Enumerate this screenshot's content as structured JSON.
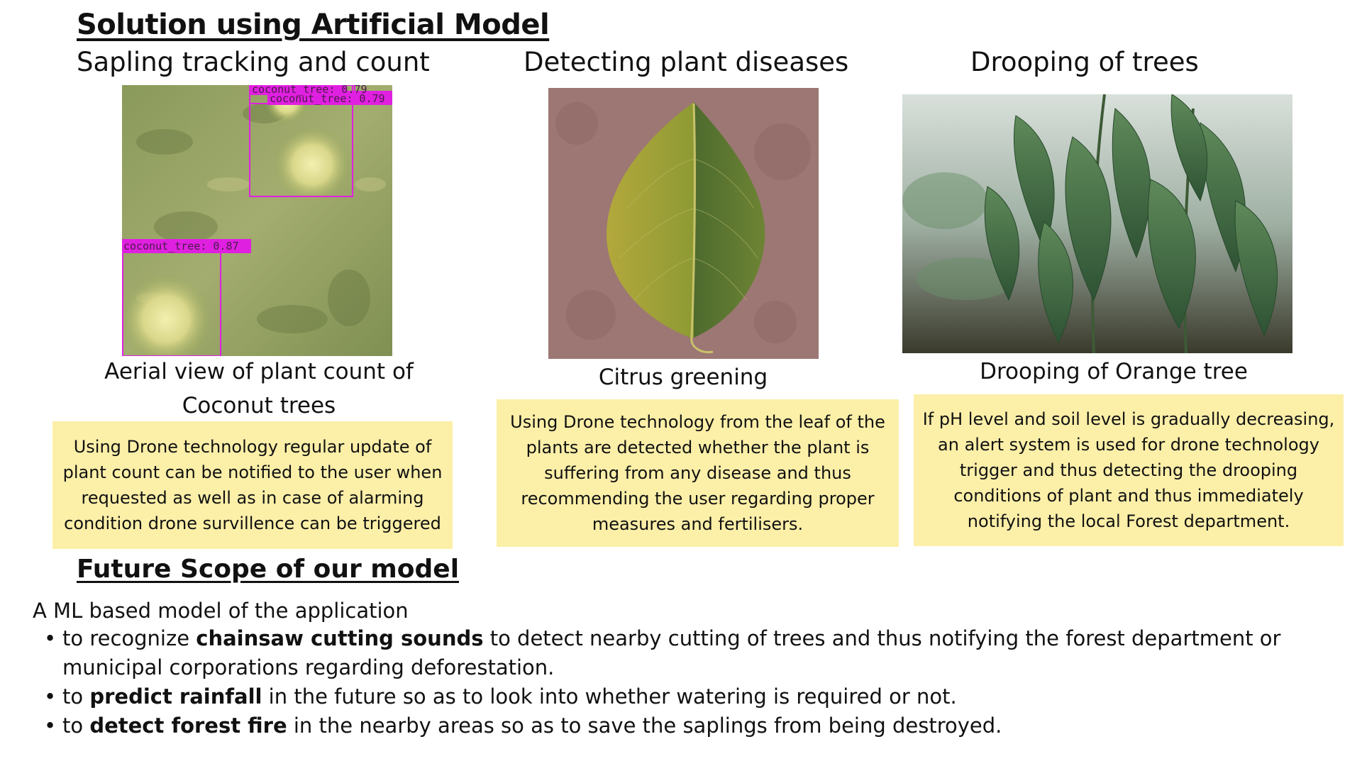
{
  "page_title": "Solution using Artificial Model",
  "columns": [
    {
      "title": "Sapling tracking and count",
      "image_caption": "Aerial view of plant count of Coconut trees",
      "description": "Using Drone technology regular update of plant count can be notified to the user when requested as well as in case of alarming condition drone survillence can be triggered",
      "detections": [
        "coconut_tree: 0.79",
        "coconut_tree: 0.79",
        "coconut_tree: 0.87"
      ]
    },
    {
      "title": "Detecting plant diseases",
      "image_caption": "Citrus greening",
      "description": "Using Drone technology from the leaf of the plants are detected whether the plant is suffering from any disease and thus recommending the user regarding proper measures and fertilisers."
    },
    {
      "title": "Drooping of trees",
      "image_caption": "Drooping of Orange tree",
      "description": "If pH level and soil level is gradually decreasing, an alert system is used for drone technology trigger and thus detecting the drooping conditions of plant and thus immediately notifying the local Forest department."
    }
  ],
  "future": {
    "heading": "Future Scope of our model",
    "intro": "A ML based model of the application",
    "bullets": [
      {
        "pre": "to recognize ",
        "bold": "chainsaw cutting sounds",
        "post": " to detect nearby cutting of trees and thus notifying the forest department or municipal corporations regarding deforestation."
      },
      {
        "pre": "to ",
        "bold": "predict rainfall",
        "post": " in the future so as to look into whether watering is required or not."
      },
      {
        "pre": "to ",
        "bold": "detect forest fire",
        "post": " in the nearby areas so as to save the saplings from being destroyed."
      }
    ],
    "bullet_glyph": "•"
  },
  "colors": {
    "box_background": "#fcefa8",
    "detection_box": "#e020e0"
  }
}
